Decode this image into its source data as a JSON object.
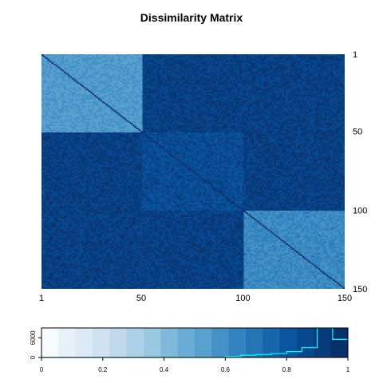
{
  "chart_data": [
    {
      "type": "heatmap",
      "title": "Dissimilarity Matrix",
      "n": 150,
      "x_ticks": [
        "1",
        "50",
        "100",
        "150"
      ],
      "x_tick_values": [
        1,
        50,
        100,
        150
      ],
      "y_ticks": [
        "1",
        "50",
        "100",
        "150"
      ],
      "y_tick_values": [
        1,
        50,
        100,
        150
      ],
      "y_axis_position": "right",
      "blocks": [
        {
          "from": 1,
          "to": 50,
          "within_dissimilarity": 0.55
        },
        {
          "from": 51,
          "to": 100,
          "within_dissimilarity": 0.85
        },
        {
          "from": 101,
          "to": 150,
          "within_dissimilarity": 0.62
        }
      ],
      "between_dissimilarity": 0.9,
      "diagonal_dissimilarity": 1.0,
      "noise": 0.05
    },
    {
      "type": "bar",
      "title": "",
      "legend_role": "color key with histogram",
      "xlim": [
        0,
        1
      ],
      "x_ticks": [
        "0",
        "0.2",
        "0.4",
        "0.6",
        "0.8",
        "1"
      ],
      "x_tick_values": [
        0,
        0.2,
        0.4,
        0.6,
        0.8,
        1
      ],
      "y_ticks": [
        "0",
        "6000"
      ],
      "y_tick_values": [
        0,
        6000
      ],
      "ylim": [
        0,
        9000
      ],
      "bin_edges": [
        0,
        0.05,
        0.1,
        0.15,
        0.2,
        0.25,
        0.3,
        0.35,
        0.4,
        0.45,
        0.5,
        0.55,
        0.6,
        0.65,
        0.7,
        0.75,
        0.8,
        0.85,
        0.9,
        0.95,
        1.0
      ],
      "colors": [
        "#F7FBFF",
        "#E8F1FA",
        "#DCE9F6",
        "#D0E1F2",
        "#C1D9ED",
        "#ADD0E6",
        "#9AC8E0",
        "#80B9DA",
        "#6AACD5",
        "#58A0CE",
        "#4592C6",
        "#3383BE",
        "#2474B6",
        "#1765AB",
        "#0B559F",
        "#08488E",
        "#083B7C",
        "#08306B"
      ],
      "histogram_counts": [
        0,
        0,
        0,
        0,
        0,
        0,
        0,
        0,
        0,
        0,
        0,
        0,
        300,
        700,
        900,
        1200,
        1800,
        3000,
        9000,
        5500
      ],
      "histogram_color": "#00FFFF"
    }
  ]
}
